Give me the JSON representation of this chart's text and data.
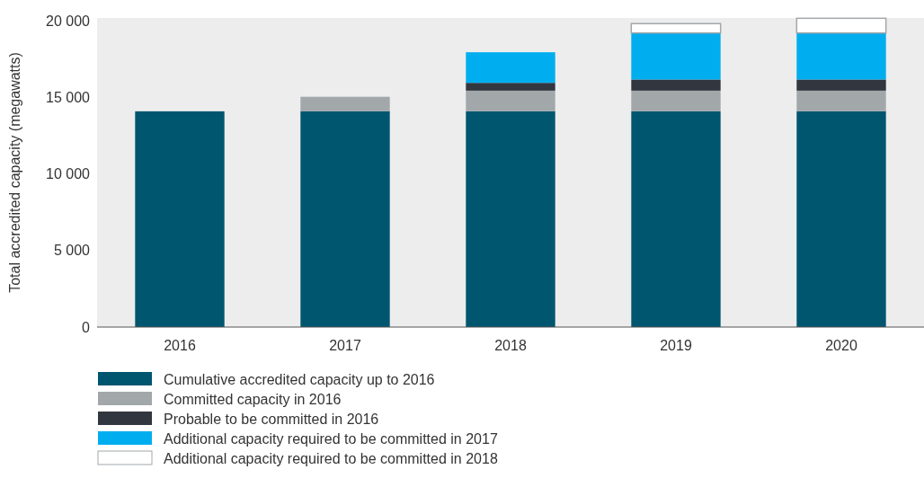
{
  "chart_data": {
    "type": "bar",
    "stacked": true,
    "ylabel": "Total accredited capacity (megawatts)",
    "categories": [
      "2016",
      "2017",
      "2018",
      "2019",
      "2020"
    ],
    "series": [
      {
        "name": "Cumulative accredited capacity up to 2016",
        "color": "#00566f",
        "values": [
          14100,
          14100,
          14100,
          14100,
          14100
        ]
      },
      {
        "name": "Committed capacity in 2016",
        "color": "#a2a7aa",
        "values": [
          null,
          950,
          1350,
          1350,
          1350
        ]
      },
      {
        "name": "Probable to be committed in 2016",
        "color": "#32363f",
        "values": [
          null,
          null,
          510,
          730,
          730
        ]
      },
      {
        "name": "Additional capacity required to be committed in 2017",
        "color": "#00aeef",
        "values": [
          null,
          null,
          2000,
          3040,
          3040
        ]
      },
      {
        "name": "Additional capacity required to be committed in 2018",
        "color": "#ffffff",
        "values": [
          null,
          null,
          null,
          610,
          960
        ]
      }
    ],
    "ylim": [
      0,
      20200
    ],
    "yticks": [
      {
        "value": 0,
        "label": "0"
      },
      {
        "value": 5000,
        "label": "5 000"
      },
      {
        "value": 10000,
        "label": "10 000"
      },
      {
        "value": 15000,
        "label": "15 000"
      },
      {
        "value": 20000,
        "label": "20 000"
      }
    ],
    "legend": "bottom"
  }
}
